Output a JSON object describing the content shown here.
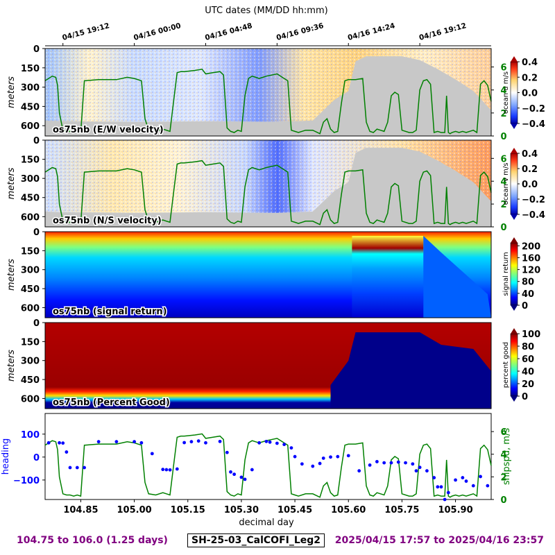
{
  "figure": {
    "top_axis_label": "UTC dates (MM/DD hh:mm)",
    "top_ticks": [
      {
        "x": 104.8,
        "label": "04/15 19:12"
      },
      {
        "x": 105.0,
        "label": "04/16 00:00"
      },
      {
        "x": 105.2,
        "label": "04/16 04:48"
      },
      {
        "x": 105.4,
        "label": "04/16 09:36"
      },
      {
        "x": 105.6,
        "label": "04/16 14:24"
      },
      {
        "x": 105.8,
        "label": "04/16 19:12"
      }
    ],
    "footer_left": "104.75 to 106.0 (1.25 days)",
    "footer_center": "SH-25-03_CalCOFI_Leg2",
    "footer_right": "2025/04/15 17:57 to 2025/04/16 23:57"
  },
  "chart_data": [
    {
      "type": "heatmap",
      "title": "os75nb (E/W velocity)",
      "ylabel": "meters",
      "yticks": [
        0,
        150,
        300,
        450,
        600
      ],
      "ylim": [
        680,
        0
      ],
      "colorbar": {
        "label": "ocean u m/s",
        "ticks": [
          "0.4",
          "0.2",
          "0.0",
          "−0.2",
          "−0.4"
        ],
        "range": [
          -0.4,
          0.4
        ],
        "colormap": "bwr"
      },
      "right_axis": {
        "ticks": [
          "6",
          "4",
          "2",
          "0"
        ],
        "color": "#008000"
      },
      "overlay": "shipspd"
    },
    {
      "type": "heatmap",
      "title": "os75nb (N/S velocity)",
      "ylabel": "meters",
      "yticks": [
        0,
        150,
        300,
        450,
        600
      ],
      "ylim": [
        680,
        0
      ],
      "colorbar": {
        "label": "ocean v m/s",
        "ticks": [
          "0.4",
          "0.2",
          "0.0",
          "−0.2",
          "−0.4"
        ],
        "range": [
          -0.4,
          0.4
        ],
        "colormap": "bwr"
      },
      "right_axis": {
        "ticks": [
          "6",
          "4",
          "2",
          "0"
        ],
        "color": "#008000"
      },
      "overlay": "shipspd"
    },
    {
      "type": "heatmap",
      "title": "os75nb (signal return)",
      "ylabel": "meters",
      "yticks": [
        0,
        150,
        300,
        450,
        600
      ],
      "ylim": [
        680,
        0
      ],
      "colorbar": {
        "label": "signal return",
        "ticks": [
          "200",
          "160",
          "120",
          "80",
          "40",
          "0"
        ],
        "range": [
          0,
          210
        ],
        "colormap": "jet"
      }
    },
    {
      "type": "heatmap",
      "title": "os75nb (Percent Good)",
      "ylabel": "meters",
      "yticks": [
        0,
        150,
        300,
        450,
        600
      ],
      "ylim": [
        680,
        0
      ],
      "colorbar": {
        "label": "percent good",
        "ticks": [
          "100",
          "80",
          "60",
          "40",
          "20",
          "0"
        ],
        "range": [
          0,
          100
        ],
        "colormap": "jet"
      }
    },
    {
      "type": "scatter",
      "xlabel": "decimal day",
      "xticks": [
        "104.85",
        "105.00",
        "105.15",
        "105.30",
        "105.45",
        "105.60",
        "105.75",
        "105.90"
      ],
      "xlim": [
        104.75,
        106.0
      ],
      "ylabel": "heading",
      "ylabel_color": "#0000ff",
      "yticks": [
        "100",
        "0",
        "−100"
      ],
      "ylim": [
        -185,
        190
      ],
      "right_label": "shipspd, m/s",
      "right_color": "#008000",
      "right_ticks": [
        "6",
        "4",
        "2",
        "0"
      ],
      "right_lim": [
        0,
        7.6
      ],
      "series": [
        {
          "name": "heading",
          "color": "#0000ff",
          "x": [
            104.76,
            104.79,
            104.8,
            104.81,
            104.82,
            104.84,
            104.86,
            104.9,
            104.95,
            105.0,
            105.02,
            105.05,
            105.08,
            105.09,
            105.1,
            105.12,
            105.14,
            105.16,
            105.18,
            105.2,
            105.24,
            105.26,
            105.27,
            105.28,
            105.3,
            105.31,
            105.33,
            105.35,
            105.37,
            105.38,
            105.4,
            105.42,
            105.44,
            105.45,
            105.47,
            105.5,
            105.52,
            105.53,
            105.55,
            105.57,
            105.6,
            105.63,
            105.66,
            105.68,
            105.7,
            105.72,
            105.74,
            105.76,
            105.78,
            105.79,
            105.8,
            105.82,
            105.84,
            105.85,
            105.86,
            105.87,
            105.88,
            105.9,
            105.92,
            105.93,
            105.95,
            105.97,
            105.99
          ],
          "y": [
            62,
            62,
            61,
            22,
            -46,
            -46,
            -46,
            67,
            67,
            67,
            62,
            15,
            -54,
            -55,
            -56,
            -52,
            63,
            67,
            70,
            62,
            68,
            20,
            -65,
            -75,
            -88,
            -97,
            -55,
            62,
            68,
            65,
            60,
            55,
            40,
            2,
            -30,
            -40,
            -28,
            -5,
            0,
            2,
            6,
            -60,
            -35,
            -20,
            -25,
            -25,
            -22,
            -25,
            -30,
            -60,
            -45,
            -60,
            -90,
            -130,
            -130,
            -185,
            -155,
            -100,
            -90,
            -105,
            -125,
            -85,
            -125
          ]
        },
        {
          "name": "shipspd",
          "color": "#008000",
          "x": [
            104.75,
            104.77,
            104.78,
            104.785,
            104.79,
            104.8,
            104.81,
            104.82,
            104.83,
            104.84,
            104.85,
            104.86,
            104.9,
            104.95,
            104.98,
            105.0,
            105.02,
            105.03,
            105.04,
            105.06,
            105.08,
            105.09,
            105.1,
            105.11,
            105.12,
            105.13,
            105.14,
            105.17,
            105.19,
            105.2,
            105.22,
            105.24,
            105.25,
            105.26,
            105.27,
            105.28,
            105.29,
            105.3,
            105.31,
            105.32,
            105.33,
            105.34,
            105.35,
            105.37,
            105.4,
            105.42,
            105.43,
            105.44,
            105.45,
            105.46,
            105.48,
            105.5,
            105.52,
            105.53,
            105.54,
            105.55,
            105.56,
            105.57,
            105.58,
            105.59,
            105.6,
            105.62,
            105.64,
            105.65,
            105.66,
            105.67,
            105.68,
            105.69,
            105.7,
            105.71,
            105.72,
            105.73,
            105.74,
            105.75,
            105.77,
            105.78,
            105.79,
            105.8,
            105.81,
            105.82,
            105.83,
            105.84,
            105.85,
            105.86,
            105.87,
            105.875,
            105.88,
            105.885,
            105.89,
            105.9,
            105.91,
            105.92,
            105.93,
            105.95,
            105.96,
            105.97,
            105.98,
            105.99,
            106.0
          ],
          "y": [
            4.8,
            5.2,
            5.1,
            4.4,
            2.0,
            0.5,
            0.4,
            0.4,
            0.3,
            0.4,
            0.3,
            4.8,
            4.9,
            4.9,
            5.1,
            5.0,
            4.8,
            1.5,
            0.5,
            0.4,
            0.6,
            0.5,
            0.4,
            3.0,
            5.5,
            5.6,
            5.6,
            5.7,
            5.8,
            5.4,
            5.5,
            5.6,
            5.3,
            0.7,
            0.4,
            0.3,
            0.5,
            0.4,
            3.5,
            5.0,
            5.2,
            5.1,
            5.0,
            5.2,
            5.4,
            5.0,
            4.8,
            0.5,
            0.4,
            0.3,
            0.5,
            0.5,
            0.2,
            1.2,
            1.5,
            0.6,
            0.3,
            0.4,
            2.8,
            4.8,
            4.9,
            4.9,
            5.0,
            1.2,
            0.4,
            0.3,
            0.6,
            0.5,
            0.4,
            1.2,
            3.5,
            3.8,
            3.6,
            0.5,
            0.3,
            0.3,
            0.5,
            4.0,
            4.8,
            4.9,
            4.5,
            0.3,
            0.4,
            0.3,
            0.3,
            3.5,
            0.3,
            0.2,
            0.3,
            0.4,
            0.3,
            0.4,
            0.3,
            0.5,
            0.3,
            4.5,
            4.8,
            4.4,
            3.0
          ]
        }
      ]
    }
  ]
}
